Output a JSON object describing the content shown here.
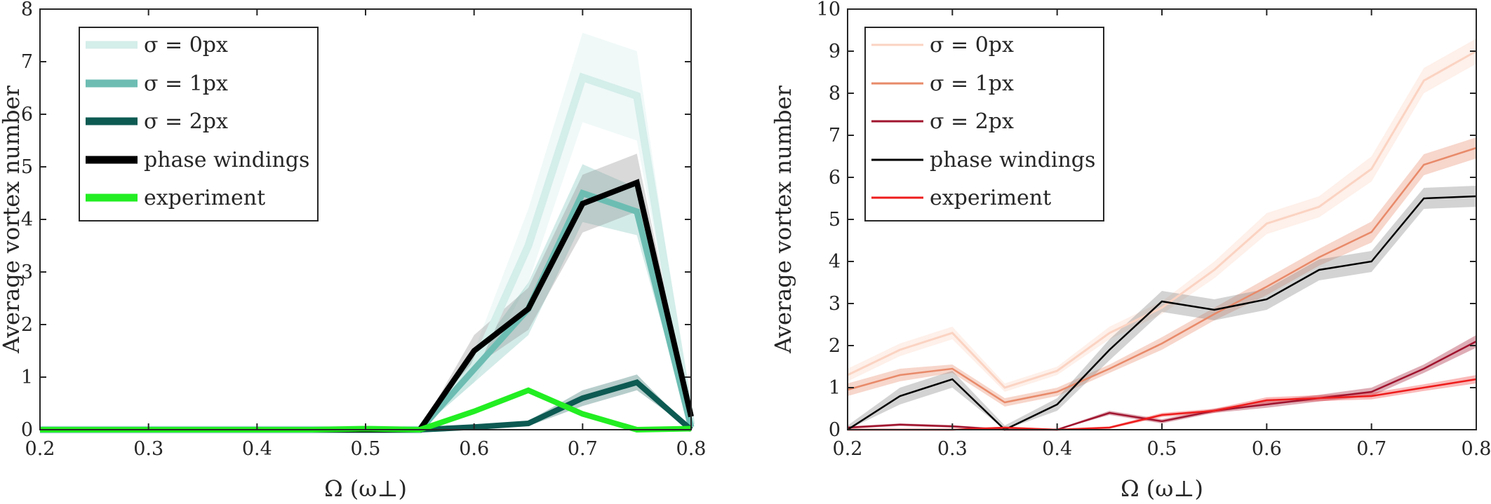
{
  "chart_data": [
    {
      "type": "line",
      "panel": "left",
      "xlabel": "Ω (ω⊥)",
      "ylabel": "Average vortex number",
      "xlim": [
        0.2,
        0.8
      ],
      "ylim": [
        0,
        8
      ],
      "xticks": [
        "0.2",
        "0.3",
        "0.4",
        "0.5",
        "0.6",
        "0.7",
        "0.8"
      ],
      "yticks": [
        "0",
        "1",
        "2",
        "3",
        "4",
        "5",
        "6",
        "7",
        "8"
      ],
      "legend_position": "top-left",
      "x": [
        0.2,
        0.25,
        0.3,
        0.35,
        0.4,
        0.45,
        0.5,
        0.55,
        0.6,
        0.65,
        0.7,
        0.75,
        0.8
      ],
      "series": [
        {
          "name": "σ = 0px",
          "color": "#d4eeea",
          "values": [
            0,
            0,
            0,
            0,
            0,
            0,
            0,
            0,
            1.2,
            3.5,
            6.7,
            6.35,
            0.1
          ],
          "band": [
            0,
            0,
            0,
            0,
            0,
            0,
            0,
            0,
            0.3,
            0.7,
            0.85,
            0.85,
            0.1
          ]
        },
        {
          "name": "σ = 1px",
          "color": "#6dbdb3",
          "values": [
            0,
            0,
            0,
            0,
            0,
            0,
            0,
            0,
            1.15,
            2.3,
            4.5,
            4.15,
            0.05
          ],
          "band": [
            0,
            0,
            0,
            0,
            0,
            0,
            0,
            0,
            0.25,
            0.5,
            0.55,
            0.45,
            0.05
          ]
        },
        {
          "name": "σ = 2px",
          "color": "#0d5a52",
          "values": [
            0,
            0,
            0,
            0,
            0,
            0,
            0,
            0,
            0.05,
            0.12,
            0.6,
            0.9,
            0
          ],
          "band": [
            0,
            0,
            0,
            0,
            0,
            0,
            0,
            0,
            0.05,
            0.05,
            0.15,
            0.15,
            0
          ]
        },
        {
          "name": "phase windings",
          "color": "#000000",
          "values": [
            0,
            0,
            0,
            0,
            0,
            0,
            0,
            0,
            1.5,
            2.3,
            4.3,
            4.7,
            0.25
          ],
          "band": [
            0,
            0,
            0,
            0,
            0,
            0,
            0,
            0,
            0.3,
            0.4,
            0.55,
            0.55,
            0.05
          ]
        },
        {
          "name": "experiment",
          "color": "#22ee22",
          "values": [
            0,
            0,
            0,
            0,
            0,
            0,
            0.02,
            0,
            0.35,
            0.75,
            0.3,
            0,
            0.02
          ],
          "band": [
            0,
            0,
            0,
            0,
            0,
            0,
            0,
            0,
            0,
            0,
            0,
            0,
            0
          ]
        }
      ]
    },
    {
      "type": "line",
      "panel": "right",
      "xlabel": "Ω (ω⊥)",
      "ylabel": "Average vortex number",
      "xlim": [
        0.2,
        0.8
      ],
      "ylim": [
        0,
        10
      ],
      "xticks": [
        "0.2",
        "0.3",
        "0.4",
        "0.5",
        "0.6",
        "0.7",
        "0.8"
      ],
      "yticks": [
        "0",
        "1",
        "2",
        "3",
        "4",
        "5",
        "6",
        "7",
        "8",
        "9",
        "10"
      ],
      "legend_position": "top-left",
      "x": [
        0.2,
        0.25,
        0.3,
        0.35,
        0.4,
        0.45,
        0.5,
        0.55,
        0.6,
        0.65,
        0.7,
        0.75,
        0.8
      ],
      "series": [
        {
          "name": "σ = 0px",
          "color": "#fbd3c2",
          "values": [
            1.3,
            1.9,
            2.3,
            1.0,
            1.4,
            2.3,
            2.9,
            3.8,
            4.9,
            5.3,
            6.2,
            8.3,
            9.0
          ],
          "band": [
            0.15,
            0.15,
            0.15,
            0.1,
            0.1,
            0.15,
            0.15,
            0.2,
            0.25,
            0.25,
            0.3,
            0.3,
            0.3
          ]
        },
        {
          "name": "σ = 1px",
          "color": "#e88a6a",
          "values": [
            0.95,
            1.3,
            1.45,
            0.65,
            0.9,
            1.45,
            2.05,
            2.75,
            3.4,
            4.1,
            4.7,
            6.3,
            6.7
          ],
          "band": [
            0.15,
            0.15,
            0.1,
            0.1,
            0.1,
            0.1,
            0.15,
            0.15,
            0.2,
            0.2,
            0.25,
            0.25,
            0.25
          ]
        },
        {
          "name": "σ = 2px",
          "color": "#a0142e",
          "values": [
            0.05,
            0.12,
            0.08,
            0.0,
            0.0,
            0.4,
            0.2,
            0.45,
            0.6,
            0.75,
            0.9,
            1.45,
            2.1
          ],
          "band": [
            0.03,
            0.03,
            0.03,
            0.02,
            0.02,
            0.05,
            0.05,
            0.05,
            0.08,
            0.08,
            0.1,
            0.1,
            0.15
          ]
        },
        {
          "name": "phase windings",
          "color": "#000000",
          "values": [
            0.0,
            0.8,
            1.2,
            0.0,
            0.6,
            1.9,
            3.05,
            2.85,
            3.1,
            3.8,
            4.0,
            5.5,
            5.55
          ],
          "band": [
            0.1,
            0.2,
            0.2,
            0.1,
            0.15,
            0.25,
            0.25,
            0.25,
            0.25,
            0.25,
            0.25,
            0.25,
            0.25
          ]
        },
        {
          "name": "experiment",
          "color": "#ee1c1c",
          "values": [
            0.0,
            0.0,
            0.0,
            0.05,
            0.0,
            0.05,
            0.35,
            0.45,
            0.7,
            0.75,
            0.8,
            1.0,
            1.2
          ],
          "band": [
            0.02,
            0.02,
            0.02,
            0.02,
            0.02,
            0.03,
            0.05,
            0.05,
            0.07,
            0.07,
            0.08,
            0.08,
            0.1
          ]
        }
      ]
    }
  ]
}
